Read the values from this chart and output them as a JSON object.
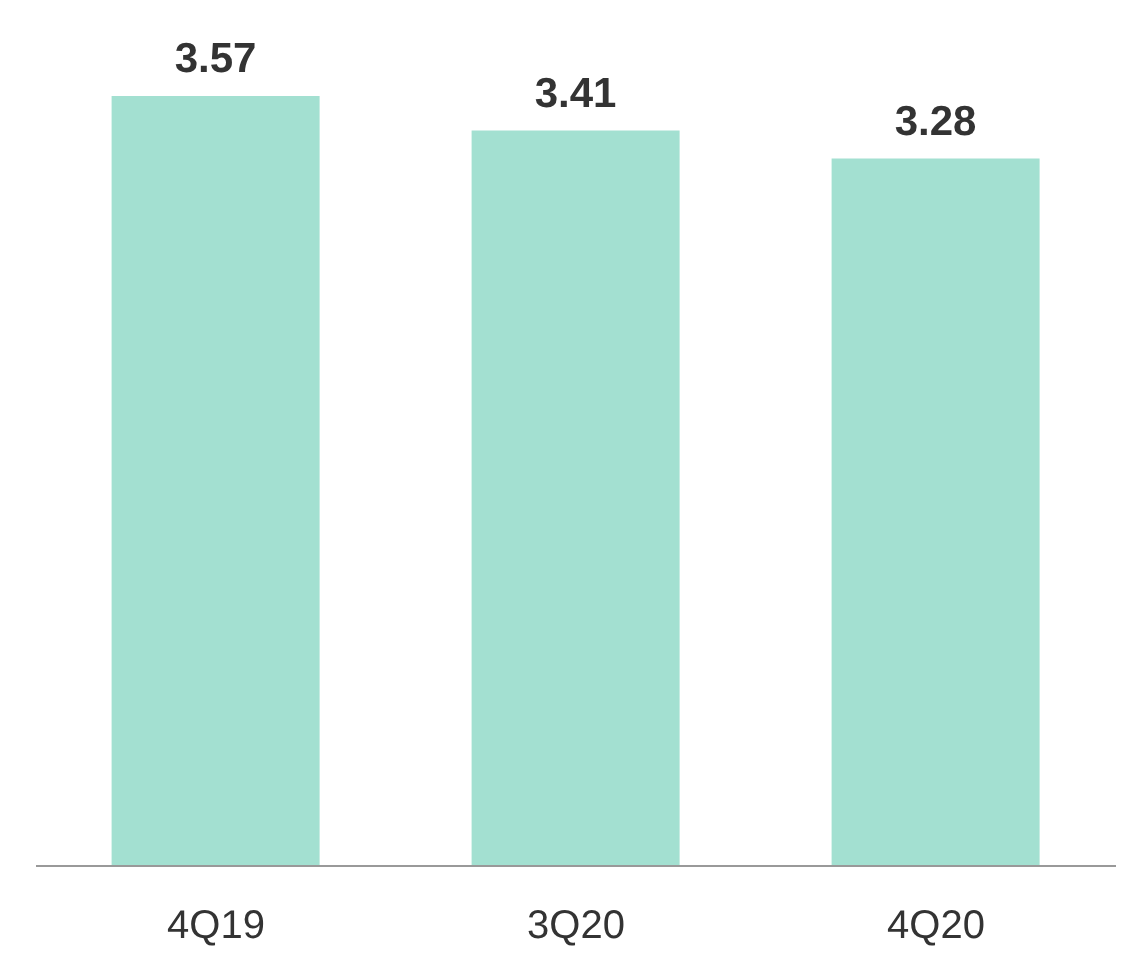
{
  "chart_data": {
    "type": "bar",
    "categories": [
      "4Q19",
      "3Q20",
      "4Q20"
    ],
    "values": [
      3.57,
      3.41,
      3.28
    ],
    "color": "#a3e0d1",
    "data_labels": true,
    "tick_labels": "x"
  }
}
